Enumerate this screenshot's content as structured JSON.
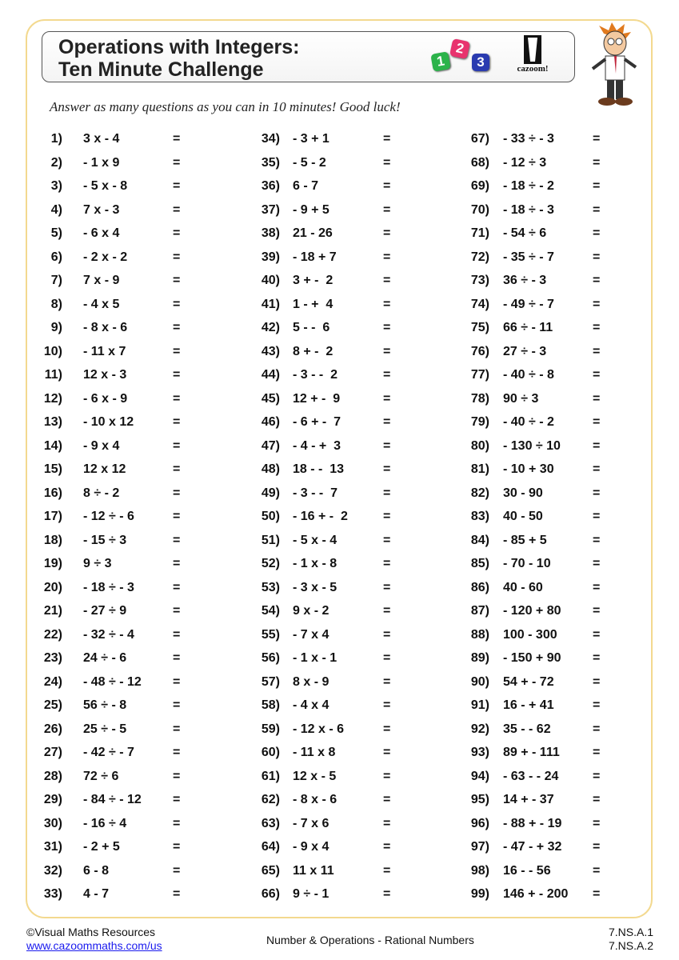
{
  "header": {
    "title_line1": "Operations with Integers:",
    "title_line2": "Ten Minute Challenge",
    "dice": [
      "1",
      "2",
      "3"
    ],
    "dice_colors": [
      "#2bb34a",
      "#e8336e",
      "#2a3bb0"
    ],
    "logo_text": "cazoom!"
  },
  "instructions": "Answer as many questions as you can in 10 minutes! Good luck!",
  "equals_sign": "=",
  "questions": [
    [
      "1)",
      "3 x - 4"
    ],
    [
      "2)",
      "- 1 x 9"
    ],
    [
      "3)",
      "- 5 x - 8"
    ],
    [
      "4)",
      "7 x - 3"
    ],
    [
      "5)",
      "- 6 x 4"
    ],
    [
      "6)",
      "- 2 x - 2"
    ],
    [
      "7)",
      "7 x - 9"
    ],
    [
      "8)",
      "- 4 x 5"
    ],
    [
      "9)",
      "- 8 x - 6"
    ],
    [
      "10)",
      "- 11 x 7"
    ],
    [
      "11)",
      "12 x - 3"
    ],
    [
      "12)",
      "- 6 x - 9"
    ],
    [
      "13)",
      "- 10 x 12"
    ],
    [
      "14)",
      "- 9 x 4"
    ],
    [
      "15)",
      "12 x 12"
    ],
    [
      "16)",
      "8 ÷ - 2"
    ],
    [
      "17)",
      "- 12 ÷ - 6"
    ],
    [
      "18)",
      "- 15 ÷ 3"
    ],
    [
      "19)",
      "9 ÷ 3"
    ],
    [
      "20)",
      "- 18 ÷ - 3"
    ],
    [
      "21)",
      "- 27 ÷ 9"
    ],
    [
      "22)",
      "- 32 ÷ - 4"
    ],
    [
      "23)",
      "24 ÷ - 6"
    ],
    [
      "24)",
      "- 48 ÷ - 12"
    ],
    [
      "25)",
      "56 ÷ - 8"
    ],
    [
      "26)",
      "25 ÷ - 5"
    ],
    [
      "27)",
      "- 42 ÷ - 7"
    ],
    [
      "28)",
      "72 ÷ 6"
    ],
    [
      "29)",
      "- 84 ÷ - 12"
    ],
    [
      "30)",
      "- 16 ÷ 4"
    ],
    [
      "31)",
      "- 2 + 5"
    ],
    [
      "32)",
      "6 - 8"
    ],
    [
      "33)",
      "4 - 7"
    ],
    [
      "34)",
      "- 3 + 1"
    ],
    [
      "35)",
      "- 5 - 2"
    ],
    [
      "36)",
      "6 - 7"
    ],
    [
      "37)",
      "- 9 + 5"
    ],
    [
      "38)",
      "21 - 26"
    ],
    [
      "39)",
      "- 18 + 7"
    ],
    [
      "40)",
      "3 + -  2"
    ],
    [
      "41)",
      "1 - +  4"
    ],
    [
      "42)",
      "5 - -  6"
    ],
    [
      "43)",
      "8 + -  2"
    ],
    [
      "44)",
      "- 3 - -  2"
    ],
    [
      "45)",
      "12 + -  9"
    ],
    [
      "46)",
      "- 6 + -  7"
    ],
    [
      "47)",
      "- 4 - +  3"
    ],
    [
      "48)",
      "18 - -  13"
    ],
    [
      "49)",
      "- 3 - -  7"
    ],
    [
      "50)",
      "- 16 + -  2"
    ],
    [
      "51)",
      "- 5 x - 4"
    ],
    [
      "52)",
      "- 1 x - 8"
    ],
    [
      "53)",
      "- 3 x - 5"
    ],
    [
      "54)",
      "9 x - 2"
    ],
    [
      "55)",
      "- 7 x 4"
    ],
    [
      "56)",
      "- 1 x - 1"
    ],
    [
      "57)",
      "8 x - 9"
    ],
    [
      "58)",
      "- 4 x 4"
    ],
    [
      "59)",
      "- 12 x - 6"
    ],
    [
      "60)",
      "- 11 x 8"
    ],
    [
      "61)",
      "12 x - 5"
    ],
    [
      "62)",
      "- 8 x - 6"
    ],
    [
      "63)",
      "- 7 x 6"
    ],
    [
      "64)",
      "- 9 x 4"
    ],
    [
      "65)",
      "11 x 11"
    ],
    [
      "66)",
      "9 ÷ - 1"
    ],
    [
      "67)",
      "- 33 ÷ - 3"
    ],
    [
      "68)",
      "- 12 ÷ 3"
    ],
    [
      "69)",
      "- 18 ÷ - 2"
    ],
    [
      "70)",
      "- 18 ÷ - 3"
    ],
    [
      "71)",
      "- 54 ÷ 6"
    ],
    [
      "72)",
      "- 35 ÷ - 7"
    ],
    [
      "73)",
      "36 ÷ - 3"
    ],
    [
      "74)",
      "- 49 ÷ - 7"
    ],
    [
      "75)",
      "66 ÷ - 11"
    ],
    [
      "76)",
      "27 ÷ - 3"
    ],
    [
      "77)",
      "- 40 ÷ - 8"
    ],
    [
      "78)",
      "90 ÷ 3"
    ],
    [
      "79)",
      "- 40 ÷ - 2"
    ],
    [
      "80)",
      "- 130 ÷ 10"
    ],
    [
      "81)",
      "- 10 + 30"
    ],
    [
      "82)",
      "30 - 90"
    ],
    [
      "83)",
      "40 - 50"
    ],
    [
      "84)",
      "- 85 + 5"
    ],
    [
      "85)",
      "- 70 - 10"
    ],
    [
      "86)",
      "40 - 60"
    ],
    [
      "87)",
      "- 120 + 80"
    ],
    [
      "88)",
      "100 - 300"
    ],
    [
      "89)",
      "- 150 + 90"
    ],
    [
      "90)",
      "54 + - 72"
    ],
    [
      "91)",
      "16 - + 41"
    ],
    [
      "92)",
      "35 - - 62"
    ],
    [
      "93)",
      "89 + - 111"
    ],
    [
      "94)",
      "- 63 - - 24"
    ],
    [
      "95)",
      "14 + - 37"
    ],
    [
      "96)",
      "- 88 + - 19"
    ],
    [
      "97)",
      "- 47 - + 32"
    ],
    [
      "98)",
      "16 - - 56"
    ],
    [
      "99)",
      "146 + - 200"
    ]
  ],
  "footer": {
    "copyright": "©Visual Maths Resources",
    "website": "www.cazoommaths.com/us",
    "topic": "Number & Operations - Rational Numbers",
    "standards": [
      "7.NS.A.1",
      "7.NS.A.2"
    ]
  }
}
